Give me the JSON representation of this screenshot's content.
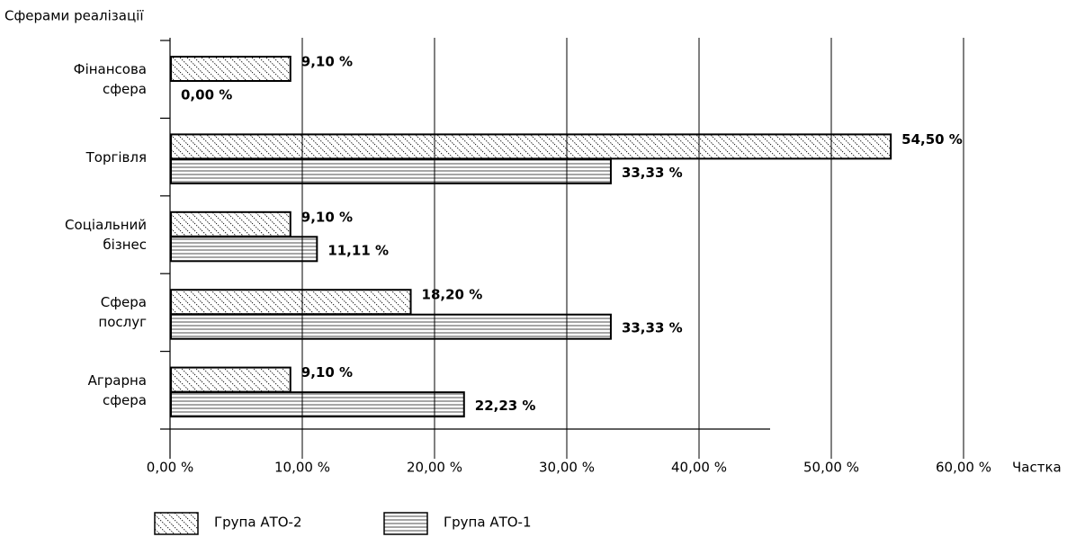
{
  "chart_data": {
    "type": "hbar",
    "y_axis_label": "Сферами реалізації",
    "x_axis_label": "Частка",
    "categories": [
      "Фінансова\nсфера",
      "Торгівля",
      "Соціальний\nбізнес",
      "Сфера\nпослуг",
      "Аграрна\nсфера"
    ],
    "series": [
      {
        "name": "Група АТО-2",
        "color": "#000000",
        "pattern": "diagonal",
        "values": [
          9.1,
          54.5,
          9.1,
          18.2,
          9.1
        ],
        "value_labels": [
          "9,10 %",
          "54,50 %",
          "9,10 %",
          "18,20 %",
          "9,10 %"
        ]
      },
      {
        "name": "Група АТО-1",
        "color": "#000000",
        "pattern": "horizontal",
        "values": [
          0.0,
          33.33,
          11.11,
          33.33,
          22.23
        ],
        "value_labels": [
          "0,00 %",
          "33,33 %",
          "11,11 %",
          "33,33 %",
          "22,23 %"
        ]
      }
    ],
    "xlim": [
      0,
      60
    ],
    "xticks": [
      {
        "value": 0,
        "label": "0,00 %"
      },
      {
        "value": 10,
        "label": "10,00 %"
      },
      {
        "value": 20,
        "label": "20,00 %"
      },
      {
        "value": 30,
        "label": "30,00 %"
      },
      {
        "value": 40,
        "label": "40,00 %"
      },
      {
        "value": 50,
        "label": "50,00 %"
      },
      {
        "value": 60,
        "label": "60,00 %"
      }
    ],
    "grid": true,
    "legend": "bottom"
  }
}
